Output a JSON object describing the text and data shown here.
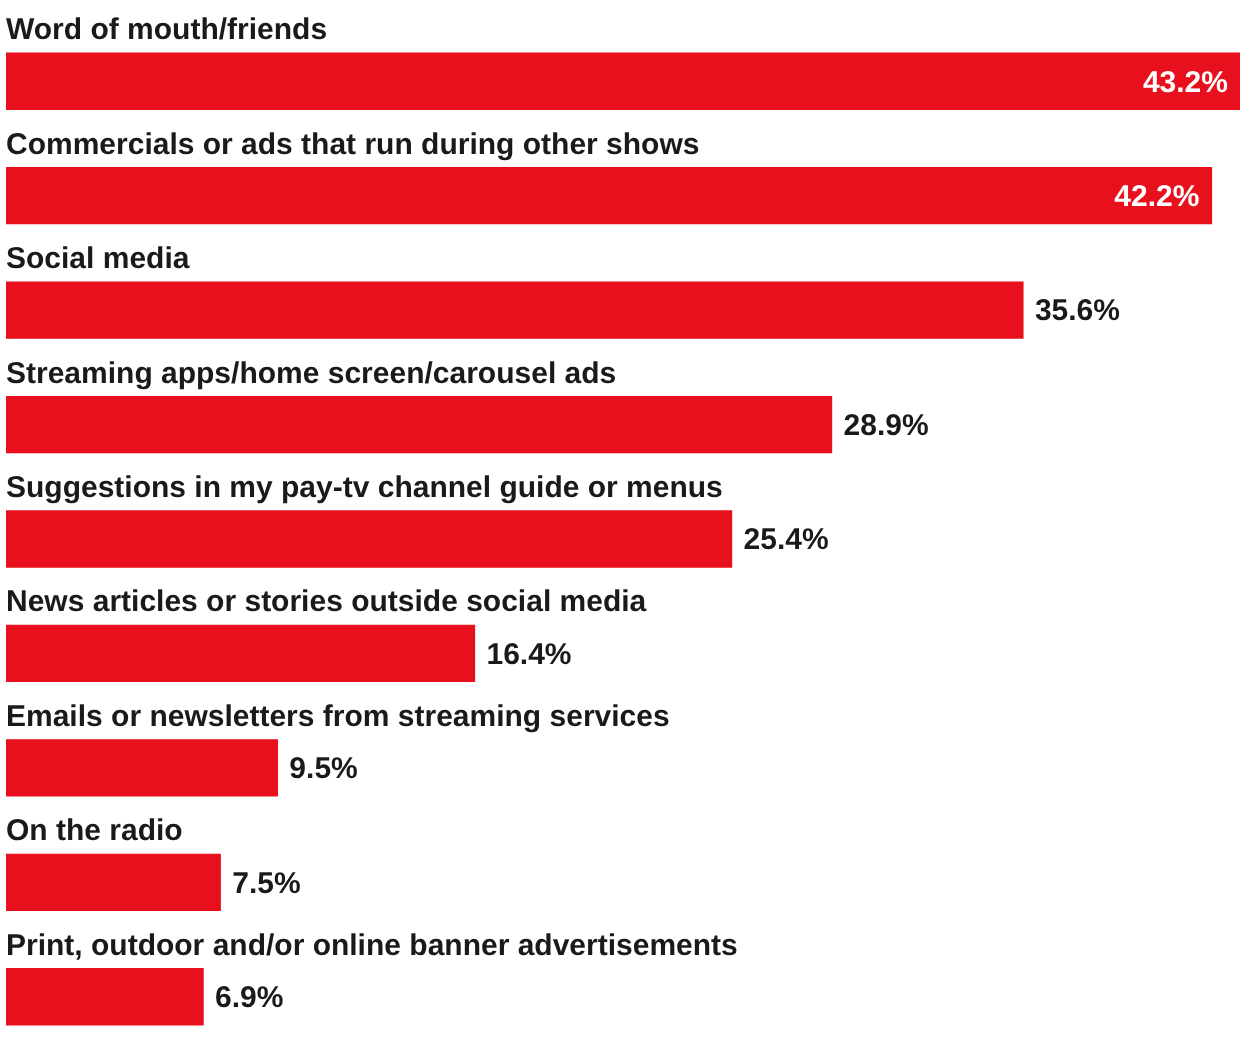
{
  "chart_data": {
    "type": "bar",
    "orientation": "horizontal",
    "categories": [
      "Word of mouth/friends",
      "Commercials or ads that run during other shows",
      "Social media",
      "Streaming apps/home screen/carousel ads",
      "Suggestions in my pay-tv channel guide or menus",
      "News articles or stories outside social media",
      "Emails or newsletters from streaming services",
      "On the radio",
      "Print, outdoor and/or online banner advertisements"
    ],
    "values": [
      43.2,
      42.2,
      35.6,
      28.9,
      25.4,
      16.4,
      9.5,
      7.5,
      6.9
    ],
    "value_labels": [
      "43.2%",
      "42.2%",
      "35.6%",
      "28.9%",
      "25.4%",
      "16.4%",
      "9.5%",
      "7.5%",
      "6.9%"
    ],
    "color": "#e8101c"
  }
}
